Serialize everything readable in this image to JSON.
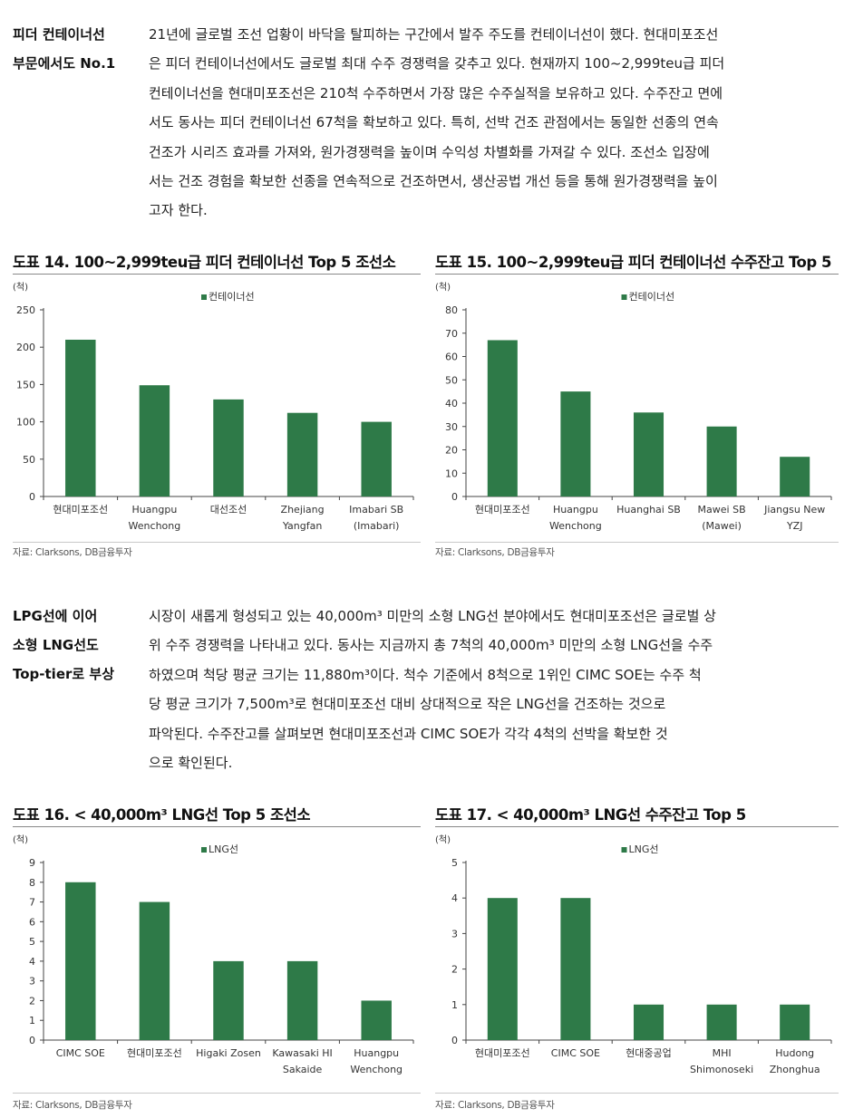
{
  "section1": {
    "side_lines": [
      "피더 컨테이너선",
      "부문에서도 No.1"
    ],
    "paragraph_lines": [
      "21년에 글로벌 조선 업황이 바닥을 탈피하는 구간에서 발주 주도를 컨테이너선이 했다. 현대미포조선",
      "은 피더 컨테이너선에서도 글로벌 최대 수주 경쟁력을 갖추고 있다. 현재까지 100~2,999teu급 피더",
      "컨테이너선을 현대미포조선은 210척 수주하면서 가장 많은 수주실적을 보유하고 있다. 수주잔고 면에",
      "서도 동사는 피더 컨테이너선 67척을 확보하고 있다. 특히, 선박 건조 관점에서는 동일한 선종의 연속",
      "건조가 시리즈 효과를 가져와, 원가경쟁력을 높이며 수익성 차별화를 가져갈 수 있다. 조선소 입장에",
      "서는 건조 경험을 확보한 선종을 연속적으로 건조하면서, 생산공법 개선 등을 통해 원가경쟁력을 높이",
      "고자 한다."
    ]
  },
  "section2": {
    "side_lines": [
      "LPG선에 이어",
      "소형 LNG선도",
      "Top-tier로 부상"
    ],
    "paragraph_lines": [
      "시장이 새롭게 형성되고 있는 40,000m³ 미만의 소형 LNG선 분야에서도 현대미포조선은 글로벌 상",
      "위 수주 경쟁력을 나타내고 있다. 동사는 지금까지 총 7척의 40,000m³ 미만의 소형 LNG선을 수주",
      "하였으며 척당 평균 크기는 11,880m³이다. 척수 기준에서 8척으로 1위인 CIMC SOE는 수주 척",
      "당 평균 크기가 7,500m³로 현대미포조선 대비 상대적으로 작은 LNG선을 건조하는 것으로",
      "파악된다. 수주잔고를 살펴보면 현대미포조선과 CIMC SOE가 각각 4척의 선박을 확보한 것",
      "으로 확인된다."
    ]
  },
  "colors": {
    "bar": "#2e7a48",
    "axis": "#444444"
  },
  "chart_data": [
    {
      "type": "bar",
      "title": "도표 14. 100~2,999teu급 피더 컨테이너선 Top 5 조선소",
      "unit_label": "(척)",
      "legend": "컨테이너선",
      "legend_position": "top-center",
      "categories": [
        [
          "현대미포조선"
        ],
        [
          "Huangpu",
          "Wenchong"
        ],
        [
          "대선조선"
        ],
        [
          "Zhejiang",
          "Yangfan"
        ],
        [
          "Imabari SB",
          "(Imabari)"
        ]
      ],
      "values": [
        210,
        149,
        130,
        112,
        100
      ],
      "ylim": [
        0,
        250
      ],
      "yticks": [
        0,
        50,
        100,
        150,
        200,
        250
      ],
      "source": "자료: Clarksons, DB금융투자"
    },
    {
      "type": "bar",
      "title": "도표 15. 100~2,999teu급 피더 컨테이너선 수주잔고 Top 5",
      "unit_label": "(척)",
      "legend": "컨테이너선",
      "legend_position": "top-center",
      "categories": [
        [
          "현대미포조선"
        ],
        [
          "Huangpu",
          "Wenchong"
        ],
        [
          "Huanghai SB"
        ],
        [
          "Mawei SB",
          "(Mawei)"
        ],
        [
          "Jiangsu New",
          "YZJ"
        ]
      ],
      "values": [
        67,
        45,
        36,
        30,
        17
      ],
      "ylim": [
        0,
        80
      ],
      "yticks": [
        0,
        10,
        20,
        30,
        40,
        50,
        60,
        70,
        80
      ],
      "source": "자료: Clarksons, DB금융투자"
    },
    {
      "type": "bar",
      "title": "도표 16. < 40,000m³ LNG선 Top 5 조선소",
      "unit_label": "(척)",
      "legend": "LNG선",
      "legend_position": "top-center",
      "categories": [
        [
          "CIMC SOE"
        ],
        [
          "현대미포조선"
        ],
        [
          "Higaki Zosen"
        ],
        [
          "Kawasaki HI",
          "Sakaide"
        ],
        [
          "Huangpu",
          "Wenchong"
        ]
      ],
      "values": [
        8,
        7,
        4,
        4,
        2
      ],
      "ylim": [
        0,
        9
      ],
      "yticks": [
        0,
        1,
        2,
        3,
        4,
        5,
        6,
        7,
        8,
        9
      ],
      "source": "자료: Clarksons, DB금융투자"
    },
    {
      "type": "bar",
      "title": "도표 17. < 40,000m³ LNG선 수주잔고 Top 5",
      "unit_label": "(척)",
      "legend": "LNG선",
      "legend_position": "top-center",
      "categories": [
        [
          "현대미포조선"
        ],
        [
          "CIMC SOE"
        ],
        [
          "현대중공업"
        ],
        [
          "MHI",
          "Shimonoseki"
        ],
        [
          "Hudong",
          "Zhonghua"
        ]
      ],
      "values": [
        4,
        4,
        1,
        1,
        1
      ],
      "ylim": [
        0,
        5
      ],
      "yticks": [
        0,
        1,
        2,
        3,
        4,
        5
      ],
      "source": "자료: Clarksons, DB금융투자"
    }
  ]
}
